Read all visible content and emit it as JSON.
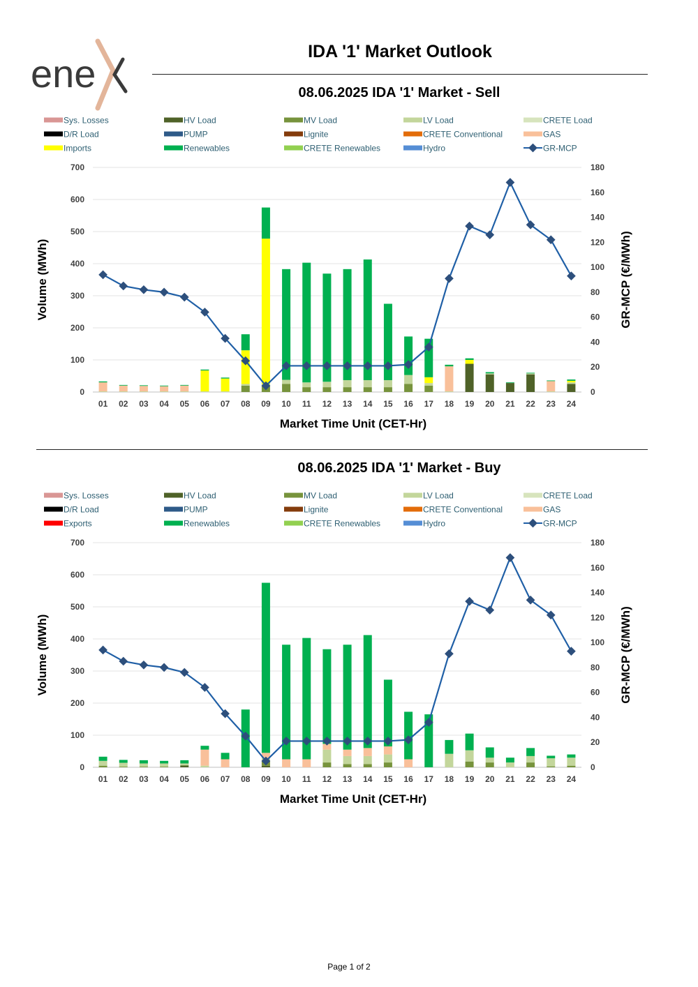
{
  "logo": {
    "text": "ene"
  },
  "page_title": "IDA '1' Market Outlook",
  "footer": "Page 1 of 2",
  "chart_data": [
    {
      "type": "bar",
      "title": "08.06.2025  IDA '1' Market - Sell",
      "xlabel": "Market Time Unit (CET-Hr)",
      "ylabel": "Volume (MWh)",
      "y2label": "GR-MCP (€/MWh)",
      "ylim": [
        0,
        700
      ],
      "y2lim": [
        0,
        180
      ],
      "yticks": [
        "0",
        "100",
        "200",
        "300",
        "400",
        "500",
        "600",
        "700"
      ],
      "y2ticks": [
        "0",
        "20",
        "40",
        "60",
        "80",
        "100",
        "120",
        "140",
        "160",
        "180"
      ],
      "legend_position": "top",
      "categories": [
        "01",
        "02",
        "03",
        "04",
        "05",
        "06",
        "07",
        "08",
        "09",
        "10",
        "11",
        "12",
        "13",
        "14",
        "15",
        "16",
        "17",
        "18",
        "19",
        "20",
        "21",
        "22",
        "23",
        "24"
      ],
      "legend": [
        {
          "name": "Sys. Losses",
          "color": "#d99694",
          "kind": "bar"
        },
        {
          "name": "HV Load",
          "color": "#4f6228",
          "kind": "bar"
        },
        {
          "name": "MV Load",
          "color": "#77933c",
          "kind": "bar"
        },
        {
          "name": "LV Load",
          "color": "#c3d69b",
          "kind": "bar"
        },
        {
          "name": "CRETE Load",
          "color": "#d7e4bd",
          "kind": "bar"
        },
        {
          "name": "D/R Load",
          "color": "#000000",
          "kind": "bar"
        },
        {
          "name": "PUMP",
          "color": "#2e5a88",
          "kind": "bar"
        },
        {
          "name": "Lignite",
          "color": "#843c0c",
          "kind": "bar"
        },
        {
          "name": "CRETE Conventional",
          "color": "#e36c09",
          "kind": "bar"
        },
        {
          "name": "GAS",
          "color": "#f9c09a",
          "kind": "bar"
        },
        {
          "name": "Imports",
          "color": "#ffff00",
          "kind": "bar"
        },
        {
          "name": "Renewables",
          "color": "#00b050",
          "kind": "bar"
        },
        {
          "name": "CRETE Renewables",
          "color": "#92d050",
          "kind": "bar"
        },
        {
          "name": "Hydro",
          "color": "#558ed5",
          "kind": "bar"
        },
        {
          "name": "GR-MCP",
          "color": "#1f5fa6",
          "kind": "line"
        }
      ],
      "series": [
        {
          "name": "HV Load",
          "color": "#4f6228",
          "values": [
            0,
            0,
            0,
            0,
            0,
            0,
            0,
            0,
            0,
            0,
            0,
            0,
            0,
            0,
            0,
            0,
            0,
            0,
            88,
            55,
            28,
            55,
            0,
            25
          ]
        },
        {
          "name": "MV Load",
          "color": "#77933c",
          "values": [
            0,
            0,
            0,
            0,
            0,
            0,
            0,
            20,
            20,
            25,
            15,
            15,
            15,
            15,
            15,
            25,
            20,
            0,
            0,
            0,
            0,
            0,
            0,
            0
          ]
        },
        {
          "name": "LV Load",
          "color": "#c3d69b",
          "values": [
            2,
            2,
            2,
            2,
            2,
            2,
            2,
            5,
            5,
            13,
            15,
            17,
            22,
            22,
            22,
            28,
            8,
            2,
            0,
            3,
            0,
            3,
            2,
            5
          ]
        },
        {
          "name": "GAS",
          "color": "#f9c09a",
          "values": [
            28,
            18,
            17,
            16,
            18,
            0,
            0,
            0,
            0,
            0,
            0,
            0,
            0,
            0,
            0,
            0,
            0,
            78,
            0,
            0,
            0,
            0,
            32,
            0
          ]
        },
        {
          "name": "Imports",
          "color": "#ffff00",
          "values": [
            0,
            0,
            0,
            0,
            0,
            65,
            40,
            105,
            453,
            0,
            0,
            0,
            0,
            0,
            0,
            0,
            18,
            0,
            12,
            0,
            0,
            0,
            0,
            5
          ]
        },
        {
          "name": "Renewables",
          "color": "#00b050",
          "values": [
            3,
            2,
            2,
            2,
            2,
            3,
            3,
            50,
            97,
            345,
            373,
            337,
            346,
            376,
            238,
            120,
            120,
            5,
            5,
            4,
            2,
            2,
            2,
            4
          ]
        }
      ],
      "line": {
        "name": "GR-MCP",
        "color": "#1f5fa6",
        "axis": "secondary",
        "values": [
          94,
          85,
          82,
          80,
          76,
          64,
          43,
          25,
          5,
          21,
          21,
          21,
          21,
          21,
          21,
          22,
          36,
          91,
          133,
          126,
          168,
          134,
          122,
          93
        ]
      }
    },
    {
      "type": "bar",
      "title": "08.06.2025  IDA '1' Market - Buy",
      "xlabel": "Market Time Unit (CET-Hr)",
      "ylabel": "Volume (MWh)",
      "y2label": "GR-MCP (€/MWh)",
      "ylim": [
        0,
        700
      ],
      "y2lim": [
        0,
        180
      ],
      "yticks": [
        "0",
        "100",
        "200",
        "300",
        "400",
        "500",
        "600",
        "700"
      ],
      "y2ticks": [
        "0",
        "20",
        "40",
        "60",
        "80",
        "100",
        "120",
        "140",
        "160",
        "180"
      ],
      "legend_position": "top",
      "categories": [
        "01",
        "02",
        "03",
        "04",
        "05",
        "06",
        "07",
        "08",
        "09",
        "10",
        "11",
        "12",
        "13",
        "14",
        "15",
        "16",
        "17",
        "18",
        "19",
        "20",
        "21",
        "22",
        "23",
        "24"
      ],
      "legend": [
        {
          "name": "Sys. Losses",
          "color": "#d99694",
          "kind": "bar"
        },
        {
          "name": "HV Load",
          "color": "#4f6228",
          "kind": "bar"
        },
        {
          "name": "MV Load",
          "color": "#77933c",
          "kind": "bar"
        },
        {
          "name": "LV Load",
          "color": "#c3d69b",
          "kind": "bar"
        },
        {
          "name": "CRETE Load",
          "color": "#d7e4bd",
          "kind": "bar"
        },
        {
          "name": "D/R Load",
          "color": "#000000",
          "kind": "bar"
        },
        {
          "name": "PUMP",
          "color": "#2e5a88",
          "kind": "bar"
        },
        {
          "name": "Lignite",
          "color": "#843c0c",
          "kind": "bar"
        },
        {
          "name": "CRETE Conventional",
          "color": "#e36c09",
          "kind": "bar"
        },
        {
          "name": "GAS",
          "color": "#f9c09a",
          "kind": "bar"
        },
        {
          "name": "Exports",
          "color": "#ff0000",
          "kind": "bar"
        },
        {
          "name": "Renewables",
          "color": "#00b050",
          "kind": "bar"
        },
        {
          "name": "CRETE Renewables",
          "color": "#92d050",
          "kind": "bar"
        },
        {
          "name": "Hydro",
          "color": "#558ed5",
          "kind": "bar"
        },
        {
          "name": "GR-MCP",
          "color": "#1f5fa6",
          "kind": "line"
        }
      ],
      "series": [
        {
          "name": "HV Load",
          "color": "#4f6228",
          "values": [
            0,
            0,
            0,
            0,
            5,
            0,
            0,
            0,
            5,
            0,
            0,
            0,
            0,
            0,
            0,
            0,
            0,
            0,
            0,
            0,
            0,
            0,
            0,
            0
          ]
        },
        {
          "name": "MV Load",
          "color": "#77933c",
          "values": [
            5,
            2,
            2,
            2,
            2,
            0,
            0,
            0,
            15,
            0,
            0,
            15,
            10,
            10,
            15,
            0,
            0,
            0,
            18,
            15,
            0,
            15,
            3,
            5
          ]
        },
        {
          "name": "LV Load",
          "color": "#c3d69b",
          "values": [
            15,
            12,
            10,
            10,
            5,
            5,
            0,
            0,
            10,
            0,
            0,
            40,
            25,
            25,
            25,
            0,
            0,
            42,
            35,
            15,
            15,
            20,
            25,
            25
          ]
        },
        {
          "name": "GAS",
          "color": "#f9c09a",
          "values": [
            0,
            0,
            0,
            0,
            0,
            50,
            25,
            0,
            15,
            25,
            25,
            18,
            20,
            25,
            25,
            25,
            0,
            0,
            0,
            0,
            0,
            0,
            0,
            0
          ]
        },
        {
          "name": "Renewables",
          "color": "#00b050",
          "values": [
            13,
            9,
            10,
            8,
            10,
            12,
            20,
            180,
            530,
            357,
            378,
            295,
            327,
            352,
            208,
            148,
            165,
            43,
            52,
            32,
            15,
            25,
            8,
            10
          ]
        }
      ],
      "line": {
        "name": "GR-MCP",
        "color": "#1f5fa6",
        "axis": "secondary",
        "values": [
          94,
          85,
          82,
          80,
          76,
          64,
          43,
          25,
          5,
          21,
          21,
          21,
          21,
          21,
          21,
          22,
          36,
          91,
          133,
          126,
          168,
          134,
          122,
          93
        ]
      }
    }
  ]
}
